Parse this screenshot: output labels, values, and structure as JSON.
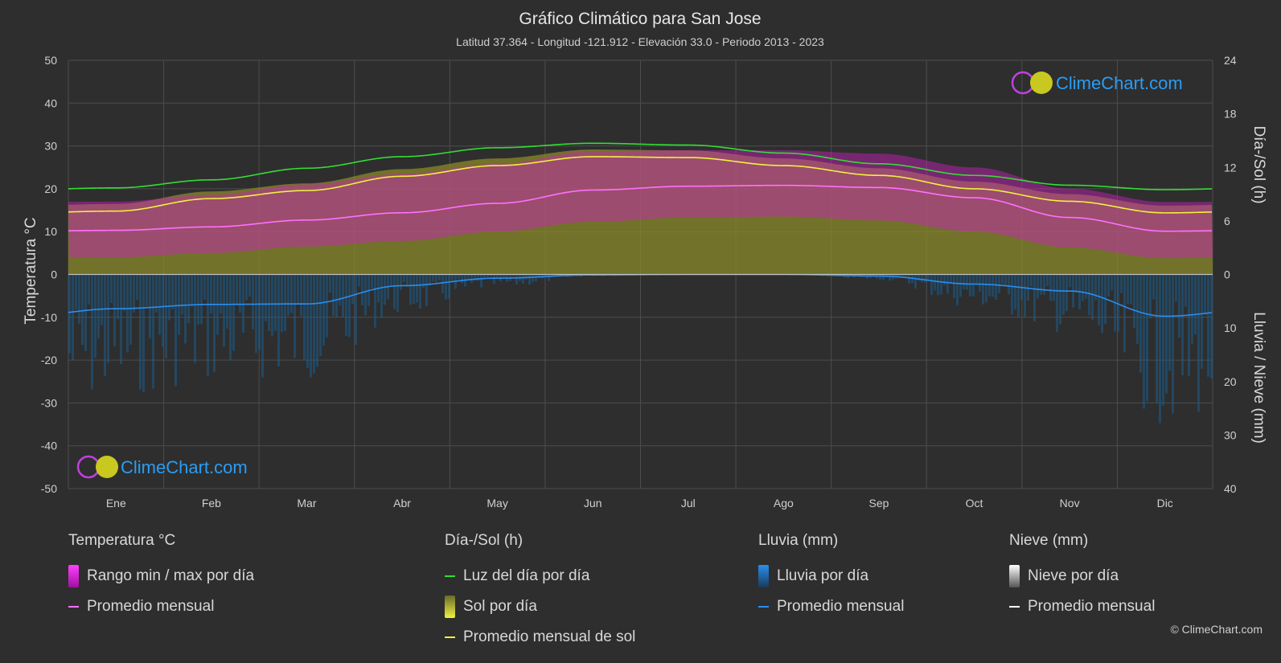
{
  "header": {
    "title": "Gráfico Climático para San Jose",
    "subtitle": "Latitud 37.364 - Longitud -121.912 - Elevación 33.0 - Periodo 2013 - 2023"
  },
  "brand": {
    "logo_text": "ClimeChart.com",
    "copyright": "© ClimeChart.com"
  },
  "colors": {
    "background": "#2e2e2e",
    "temp_range": "#d020c0",
    "temp_avg": "#ff70ff",
    "daylight": "#33dd33",
    "sunshine_fill": "#8a8a2a",
    "sunshine_avg": "#f0f040",
    "rain_bar": "#1c5c8c",
    "rain_avg": "#2a8ef0",
    "snow_avg": "#ffffff"
  },
  "chart_data": {
    "type": "line",
    "months": [
      "Ene",
      "Feb",
      "Mar",
      "Abr",
      "May",
      "Jun",
      "Jul",
      "Ago",
      "Sep",
      "Oct",
      "Nov",
      "Dic"
    ],
    "y_left": {
      "label": "Temperatura °C",
      "min": -50,
      "max": 50,
      "ticks": [
        50,
        40,
        30,
        20,
        10,
        0,
        -10,
        -20,
        -30,
        -40,
        -50
      ]
    },
    "y_right_top": {
      "label": "Día-/Sol (h)",
      "min": 0,
      "max": 24,
      "ticks": [
        24,
        18,
        12,
        6,
        0
      ]
    },
    "y_right_bottom": {
      "label": "Lluvia / Nieve (mm)",
      "min": 0,
      "max": 40,
      "ticks": [
        10,
        20,
        30,
        40
      ]
    },
    "series": [
      {
        "name": "Luz del día por día",
        "unit": "h",
        "values": [
          9.7,
          10.6,
          11.9,
          13.2,
          14.2,
          14.7,
          14.5,
          13.6,
          12.4,
          11.1,
          10.0,
          9.5
        ]
      },
      {
        "name": "Promedio mensual de sol",
        "unit": "h",
        "values": [
          7.1,
          8.5,
          9.4,
          11.0,
          12.2,
          13.2,
          13.1,
          12.2,
          11.1,
          9.6,
          8.2,
          6.9
        ]
      },
      {
        "name": "Promedio mensual",
        "group": "Temperatura °C",
        "unit": "°C",
        "values": [
          10.3,
          11.1,
          12.7,
          14.4,
          16.6,
          19.7,
          20.6,
          20.8,
          20.3,
          17.9,
          13.3,
          10.1
        ]
      },
      {
        "name": "Rango max por día",
        "group": "Temperatura °C",
        "unit": "°C",
        "values": [
          17.0,
          18.6,
          21.0,
          23.5,
          25.8,
          28.8,
          29.0,
          29.0,
          28.2,
          25.0,
          20.0,
          16.9
        ]
      },
      {
        "name": "Rango min por día",
        "group": "Temperatura °C",
        "unit": "°C",
        "values": [
          4.0,
          5.0,
          6.5,
          7.8,
          10.0,
          12.3,
          13.3,
          13.5,
          12.6,
          10.0,
          6.3,
          3.8
        ]
      },
      {
        "name": "Promedio mensual",
        "group": "Lluvia (mm)",
        "unit": "mm",
        "values": [
          6.4,
          5.6,
          5.5,
          2.1,
          0.7,
          0.1,
          0.0,
          0.0,
          0.3,
          1.8,
          3.1,
          7.8
        ]
      },
      {
        "name": "Promedio mensual",
        "group": "Nieve (mm)",
        "unit": "mm",
        "values": [
          0,
          0,
          0,
          0,
          0,
          0,
          0,
          0,
          0,
          0,
          0,
          0
        ]
      }
    ]
  },
  "legend": {
    "temperature": {
      "title": "Temperatura °C",
      "range_label": "Rango min / max por día",
      "avg_label": "Promedio mensual"
    },
    "daylight": {
      "title": "Día-/Sol (h)",
      "daylight_label": "Luz del día por día",
      "sun_label": "Sol por día",
      "sun_avg_label": "Promedio mensual de sol"
    },
    "rain": {
      "title": "Lluvia (mm)",
      "daily_label": "Lluvia por día",
      "avg_label": "Promedio mensual"
    },
    "snow": {
      "title": "Nieve (mm)",
      "daily_label": "Nieve por día",
      "avg_label": "Promedio mensual"
    }
  }
}
